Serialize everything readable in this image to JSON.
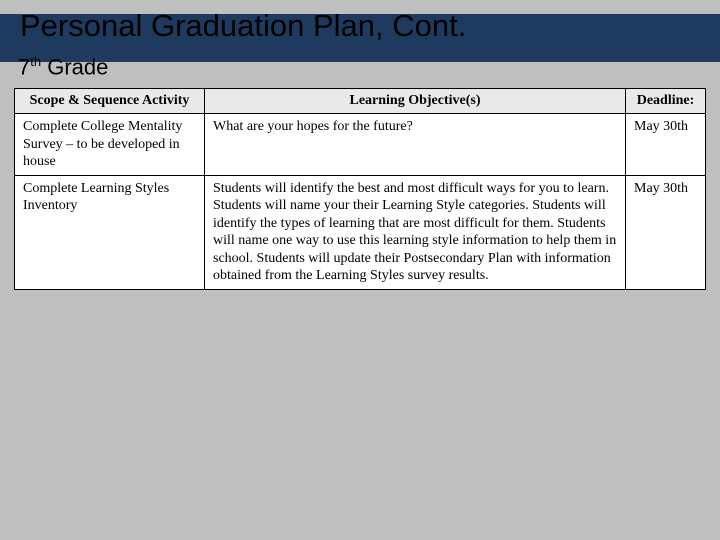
{
  "title": "Personal Graduation Plan, Cont.",
  "grade_prefix": "7",
  "grade_sup": "th",
  "grade_suffix": " Grade",
  "columns": {
    "c1": "Scope & Sequence Activity",
    "c2": "Learning Objective(s)",
    "c3": "Deadline:"
  },
  "rows": [
    {
      "activity": "Complete College Mentality Survey – to be developed in house",
      "objective": "What are your hopes for the future?",
      "deadline": "May 30th"
    },
    {
      "activity": "Complete Learning Styles Inventory",
      "objective": "Students will identify the best and most difficult ways for you to learn. Students will name your their Learning Style categories. Students will identify the types of learning that are most difficult for them. Students will name one way to use this learning style information to help them in school. Students will update their Postsecondary Plan with information obtained from the Learning Styles survey results.",
      "deadline": "May 30th"
    }
  ],
  "colors": {
    "page_bg": "#bfbfbf",
    "band": "#1f3a5f",
    "table_bg": "#ffffff",
    "header_bg": "#e9e9e9",
    "border": "#000000",
    "text": "#000000"
  }
}
